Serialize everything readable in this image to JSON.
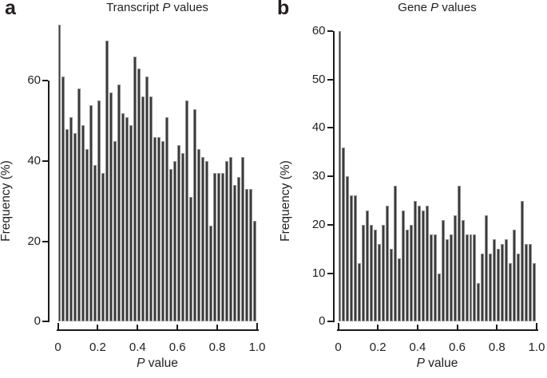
{
  "figure": {
    "panels": [
      {
        "letter": "a",
        "title": "Transcript P values",
        "title_parts": {
          "pre": "Transcript ",
          "italic": "P",
          "post": " values"
        },
        "xlabel_parts": {
          "italic": "P",
          "post": " value"
        }
      },
      {
        "letter": "b",
        "title": "Gene P values",
        "title_parts": {
          "pre": "Gene ",
          "italic": "P",
          "post": " values"
        },
        "xlabel_parts": {
          "italic": "P",
          "post": " value"
        }
      }
    ]
  },
  "chart_data": [
    {
      "type": "bar",
      "subtype": "histogram",
      "title": "Transcript P values",
      "xlabel": "P value",
      "ylabel": "Frequency (%)",
      "x_range": [
        0,
        1.0
      ],
      "bin_width": 0.02,
      "n_bins": 50,
      "x_ticks": [
        0,
        0.2,
        0.4,
        0.6,
        0.8,
        1.0
      ],
      "x_tick_labels": [
        "0",
        "0.2",
        "0.4",
        "0.6",
        "0.8",
        "1.0"
      ],
      "y_ticks": [
        0,
        20,
        40,
        60
      ],
      "y_tick_labels": [
        "0",
        "20",
        "40",
        "60"
      ],
      "y_axis_max": 60,
      "ylim": [
        0,
        75
      ],
      "grid": false,
      "legend": false,
      "values": [
        74,
        61,
        48,
        51,
        47,
        58,
        49,
        43,
        54,
        39,
        55,
        37,
        70,
        57,
        45,
        59,
        52,
        51,
        49,
        66,
        63,
        56,
        61,
        56,
        46,
        46,
        45,
        51,
        38,
        40,
        44,
        42,
        55,
        31,
        53,
        43,
        41,
        40,
        24,
        37,
        37,
        37,
        40,
        41,
        34,
        36,
        41,
        33,
        33,
        25
      ]
    },
    {
      "type": "bar",
      "subtype": "histogram",
      "title": "Gene P values",
      "xlabel": "P value",
      "ylabel": "Frequency (%)",
      "x_range": [
        0,
        1.0
      ],
      "bin_width": 0.02,
      "n_bins": 50,
      "x_ticks": [
        0,
        0.2,
        0.4,
        0.6,
        0.8,
        1.0
      ],
      "x_tick_labels": [
        "0",
        "0.2",
        "0.4",
        "0.6",
        "0.8",
        "1.0"
      ],
      "y_ticks": [
        0,
        10,
        20,
        30,
        40,
        50,
        60
      ],
      "y_tick_labels": [
        "0",
        "10",
        "20",
        "30",
        "40",
        "50",
        "60"
      ],
      "y_axis_max": 60,
      "ylim": [
        0,
        60
      ],
      "grid": false,
      "legend": false,
      "values": [
        60,
        36,
        30,
        26,
        26,
        12,
        20,
        23,
        20,
        19,
        16,
        20,
        24,
        15,
        28,
        13,
        23,
        19,
        20,
        25,
        24,
        23,
        24,
        18,
        18,
        10,
        21,
        17,
        18,
        22,
        28,
        21,
        18,
        18,
        18,
        8,
        14,
        22,
        14,
        17,
        15,
        16,
        17,
        12,
        19,
        14,
        25,
        16,
        16,
        12
      ]
    }
  ],
  "colors": {
    "bar_fill": "#3b3b3b",
    "bar_border": "#8f8f8f",
    "axis": "#1a1a1a",
    "text": "#231f20",
    "background": "#ffffff"
  }
}
